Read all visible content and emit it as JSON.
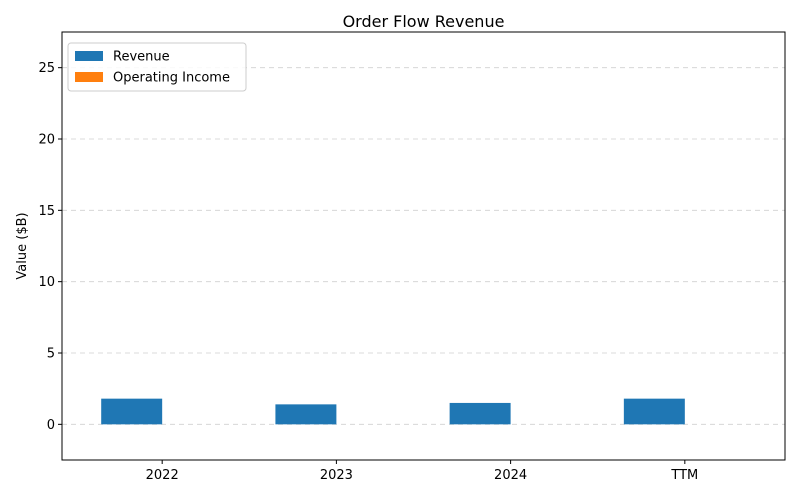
{
  "chart_data": {
    "type": "bar",
    "title": "Order Flow Revenue",
    "xlabel": "",
    "ylabel": "Value ($B)",
    "categories": [
      "2022",
      "2023",
      "2024",
      "TTM"
    ],
    "series": [
      {
        "name": "Revenue",
        "values": [
          1.8,
          1.4,
          1.5,
          1.8
        ],
        "color": "#1f77b4"
      },
      {
        "name": "Operating Income",
        "values": [
          0,
          0,
          0,
          0
        ],
        "color": "#ff7f0e"
      }
    ],
    "ylim": [
      -2.5,
      27.5
    ],
    "yticks": [
      0,
      5,
      10,
      15,
      20,
      25
    ],
    "grid": true,
    "legend_position": "top-left"
  }
}
